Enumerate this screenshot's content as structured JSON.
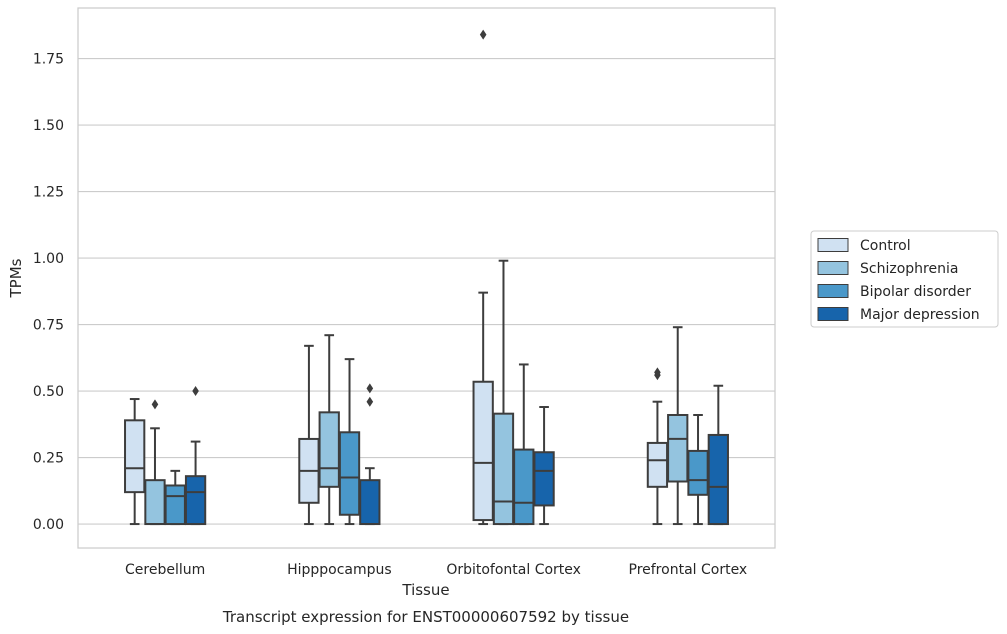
{
  "chart_data": {
    "type": "box",
    "xlabel": "Tissue",
    "ylabel": "TPMs",
    "caption": "Transcript expression for ENST00000607592 by tissue",
    "ylim": [
      -0.09,
      1.94
    ],
    "yticks": [
      0.0,
      0.25,
      0.5,
      0.75,
      1.0,
      1.25,
      1.5,
      1.75
    ],
    "ytick_labels": [
      "0.00",
      "0.25",
      "0.50",
      "0.75",
      "1.00",
      "1.25",
      "1.50",
      "1.75"
    ],
    "grid": "horizontal",
    "legend_position": "right",
    "categories": [
      "Cerebellum",
      "Hipppocampus",
      "Orbitofontal Cortex",
      "Prefrontal Cortex"
    ],
    "series": [
      {
        "name": "Control",
        "color": "#d0e1f2",
        "boxes": [
          {
            "min": 0.0,
            "q1": 0.12,
            "median": 0.21,
            "q3": 0.39,
            "max": 0.47,
            "outliers": []
          },
          {
            "min": 0.0,
            "q1": 0.08,
            "median": 0.2,
            "q3": 0.32,
            "max": 0.67,
            "outliers": []
          },
          {
            "min": 0.0,
            "q1": 0.015,
            "median": 0.23,
            "q3": 0.535,
            "max": 0.87,
            "outliers": [
              1.84
            ]
          },
          {
            "min": 0.0,
            "q1": 0.14,
            "median": 0.24,
            "q3": 0.305,
            "max": 0.46,
            "outliers": [
              0.56,
              0.57
            ]
          }
        ]
      },
      {
        "name": "Schizophrenia",
        "color": "#94c4df",
        "boxes": [
          {
            "min": 0.0,
            "q1": 0.0,
            "median": 0.0,
            "q3": 0.165,
            "max": 0.36,
            "outliers": [
              0.45
            ]
          },
          {
            "min": 0.0,
            "q1": 0.14,
            "median": 0.21,
            "q3": 0.42,
            "max": 0.71,
            "outliers": []
          },
          {
            "min": 0.0,
            "q1": 0.0,
            "median": 0.085,
            "q3": 0.415,
            "max": 0.99,
            "outliers": []
          },
          {
            "min": 0.0,
            "q1": 0.16,
            "median": 0.32,
            "q3": 0.41,
            "max": 0.74,
            "outliers": []
          }
        ]
      },
      {
        "name": "Bipolar disorder",
        "color": "#4a98c9",
        "boxes": [
          {
            "min": 0.0,
            "q1": 0.0,
            "median": 0.105,
            "q3": 0.145,
            "max": 0.2,
            "outliers": []
          },
          {
            "min": 0.0,
            "q1": 0.035,
            "median": 0.175,
            "q3": 0.345,
            "max": 0.62,
            "outliers": []
          },
          {
            "min": 0.0,
            "q1": 0.0,
            "median": 0.08,
            "q3": 0.28,
            "max": 0.6,
            "outliers": []
          },
          {
            "min": 0.0,
            "q1": 0.11,
            "median": 0.165,
            "q3": 0.275,
            "max": 0.41,
            "outliers": []
          }
        ]
      },
      {
        "name": "Major depression",
        "color": "#1764ab",
        "boxes": [
          {
            "min": 0.0,
            "q1": 0.0,
            "median": 0.12,
            "q3": 0.18,
            "max": 0.31,
            "outliers": [
              0.5
            ]
          },
          {
            "min": 0.0,
            "q1": 0.0,
            "median": 0.0,
            "q3": 0.165,
            "max": 0.21,
            "outliers": [
              0.46,
              0.51
            ]
          },
          {
            "min": 0.0,
            "q1": 0.07,
            "median": 0.2,
            "q3": 0.27,
            "max": 0.44,
            "outliers": []
          },
          {
            "min": 0.0,
            "q1": 0.0,
            "median": 0.14,
            "q3": 0.335,
            "max": 0.52,
            "outliers": []
          }
        ]
      }
    ]
  }
}
